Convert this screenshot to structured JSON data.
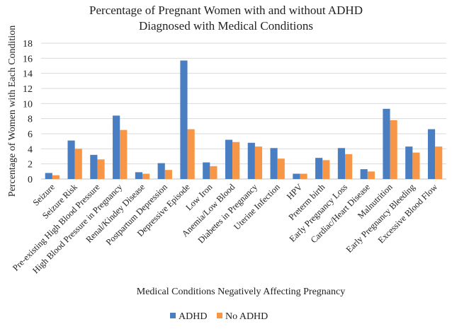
{
  "chart_data": {
    "type": "bar",
    "title": [
      "Percentage of Pregnant Women with and without ADHD",
      "Diagnosed with Medical Conditions"
    ],
    "xlabel": "Medical Conditions Negatively Affecting Pregnancy",
    "ylabel": "Percentage of Women with Each Condition",
    "ylim": [
      0,
      18
    ],
    "yticks": [
      0,
      2,
      4,
      6,
      8,
      10,
      12,
      14,
      16,
      18
    ],
    "grid": true,
    "legend_position": "bottom",
    "categories": [
      "Seizure",
      "Seizure Risk",
      "Pre-existing High Blood Pressure",
      "High Blood Pressure in Pregnancy",
      "Renal/Kindey Disease",
      "Postpartum Depression",
      "Depressive Episode",
      "Low Iron",
      "Anemia/Low Blood",
      "Diabetes in Pregnancy",
      "Uterine Infection",
      "HPV",
      "Preterm birth",
      "Early Pregnancy Loss",
      "Cardiac/Heart Disease",
      "Malnutrition",
      "Early Pregnancy Bleeding",
      "Excessive Blood Flow"
    ],
    "series": [
      {
        "name": "ADHD",
        "color": "#4A7EC2",
        "values": [
          0.8,
          5.1,
          3.2,
          8.4,
          0.9,
          2.1,
          15.7,
          2.2,
          5.2,
          4.8,
          4.1,
          0.7,
          2.8,
          4.1,
          1.3,
          9.3,
          4.3,
          6.6
        ]
      },
      {
        "name": "No ADHD",
        "color": "#F79646",
        "values": [
          0.5,
          4.0,
          2.6,
          6.5,
          0.7,
          1.2,
          6.6,
          1.7,
          4.9,
          4.3,
          2.7,
          0.7,
          2.5,
          3.3,
          1.0,
          7.8,
          3.5,
          4.3
        ]
      }
    ]
  }
}
